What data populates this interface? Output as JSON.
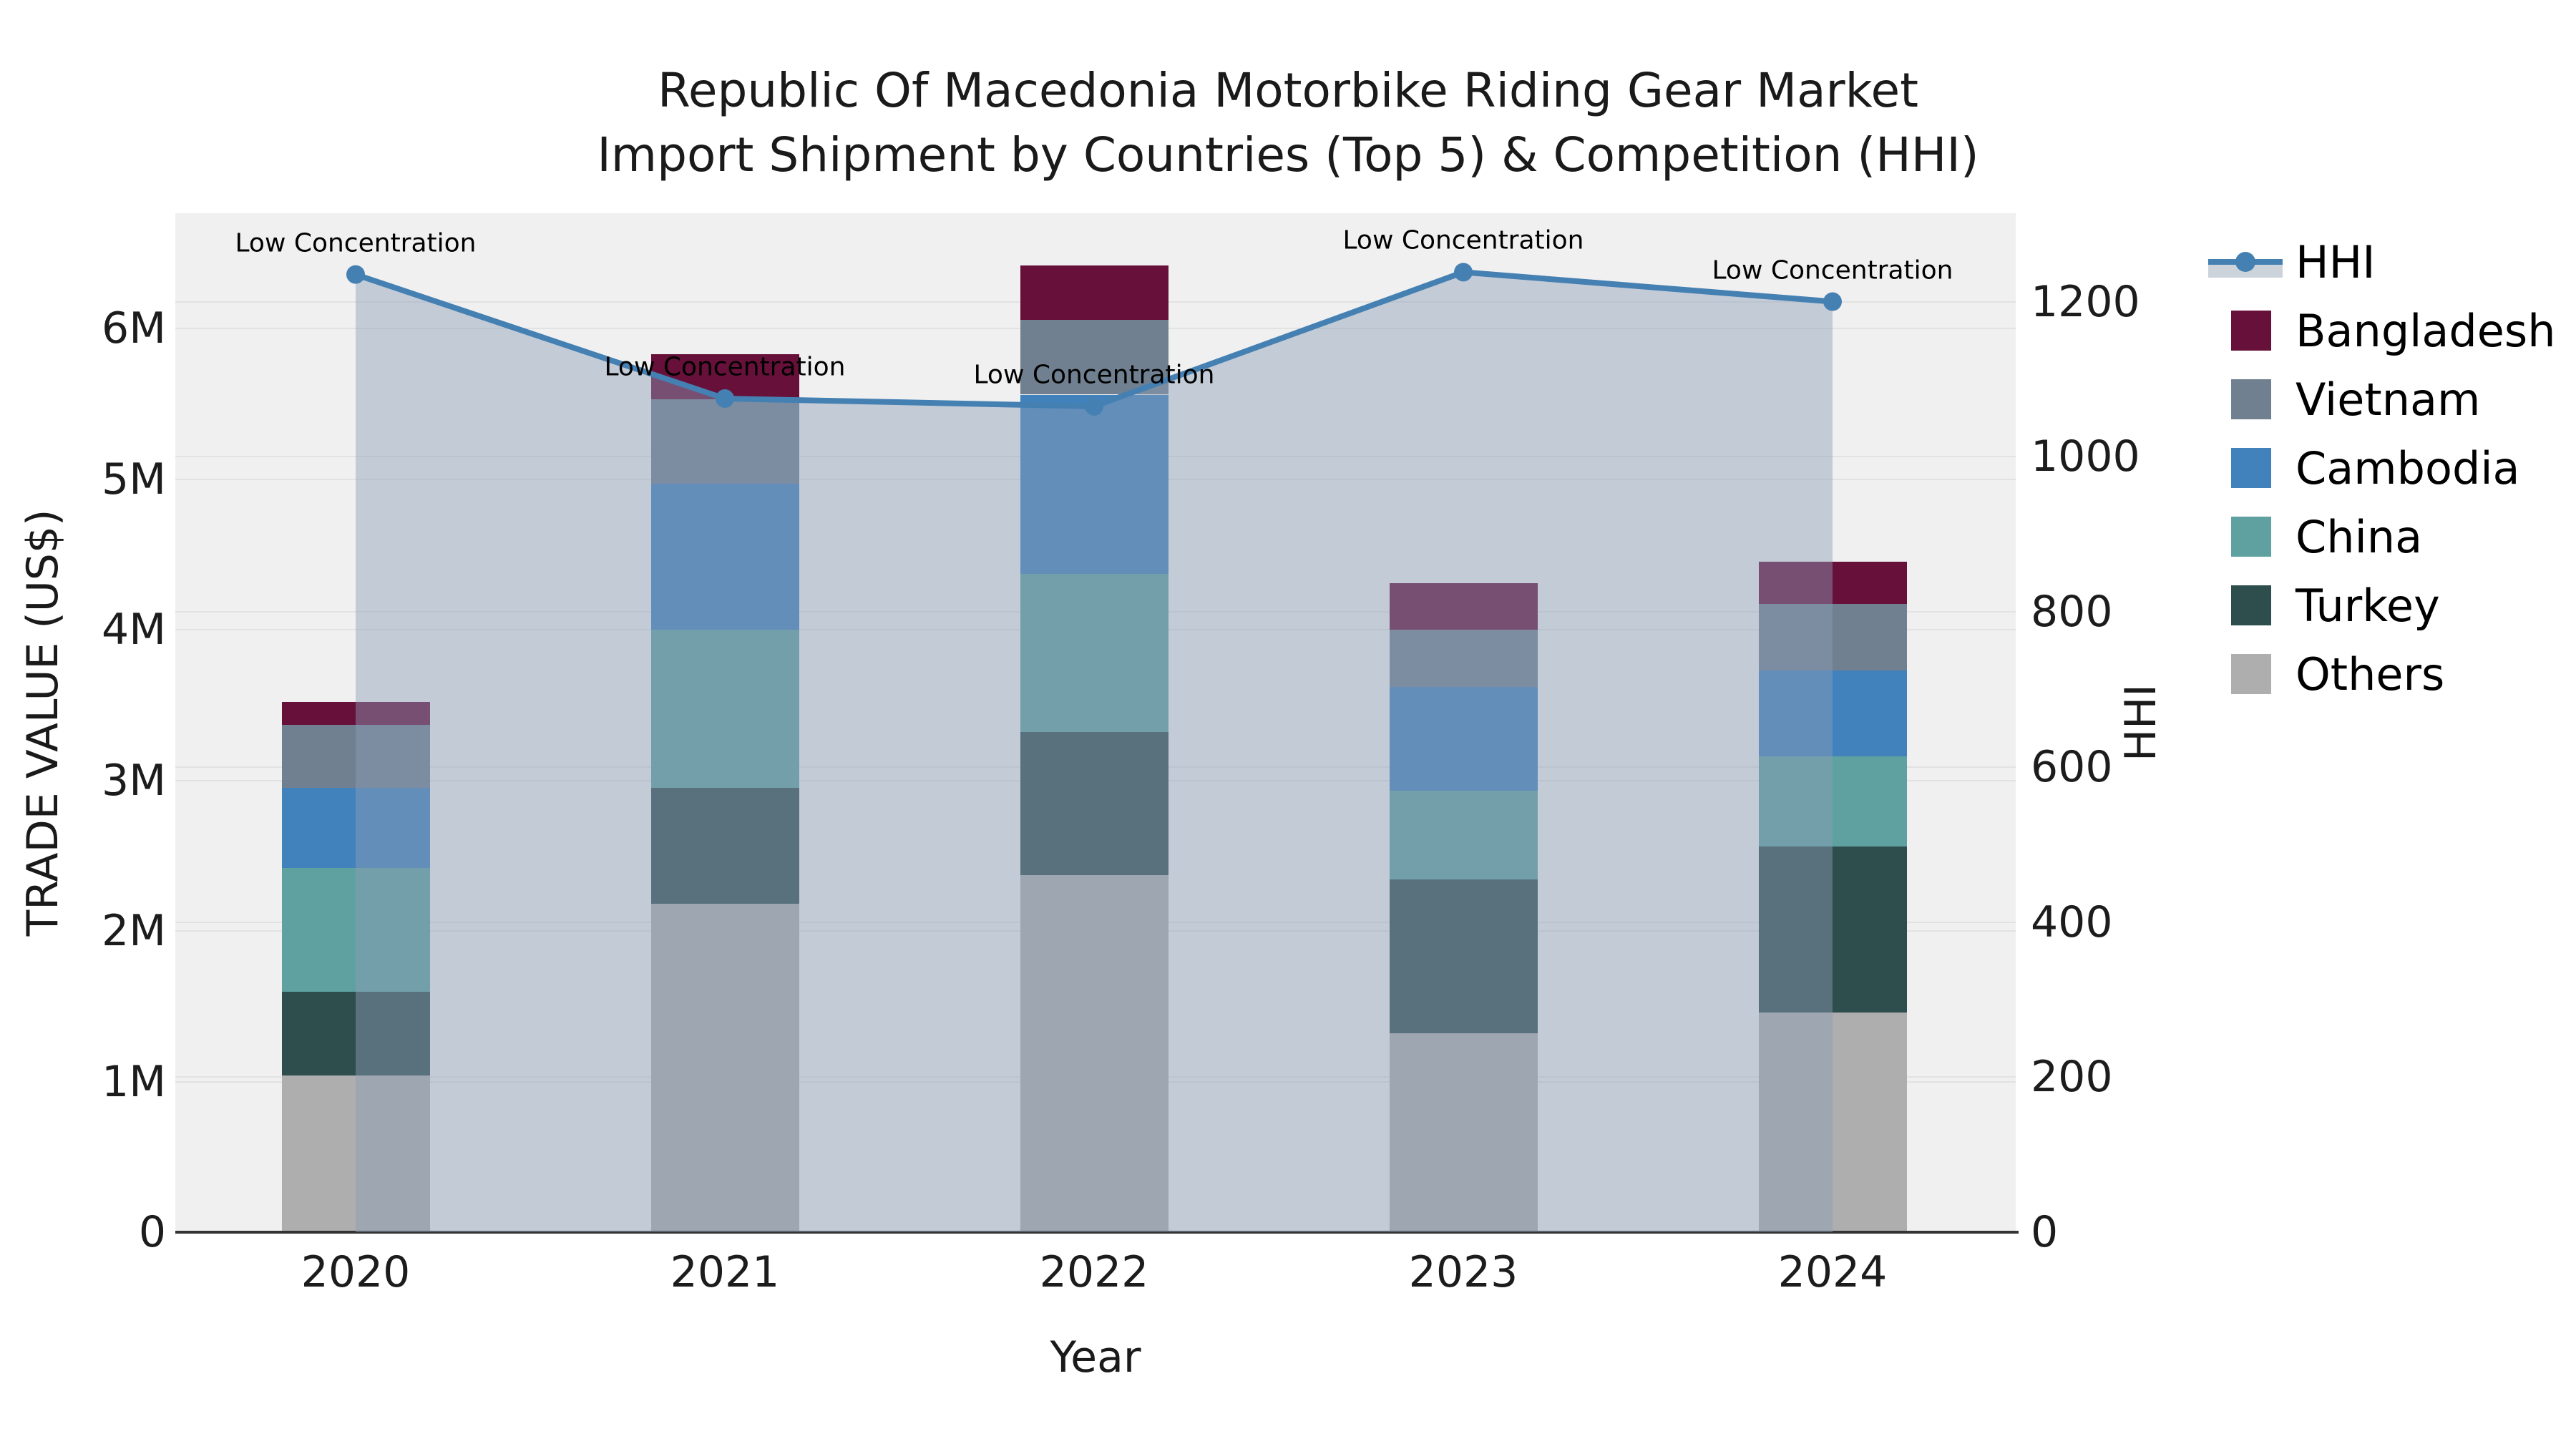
{
  "title": {
    "line1": "Republic Of Macedonia Motorbike Riding Gear Market",
    "line2": "Import Shipment by Countries (Top 5) & Competition (HHI)"
  },
  "axes": {
    "x": {
      "label": "Year",
      "ticks": [
        "2020",
        "2021",
        "2022",
        "2023",
        "2024"
      ]
    },
    "y_left": {
      "label": "TRADE VALUE (US$)",
      "tick_labels": [
        "0",
        "1M",
        "2M",
        "3M",
        "4M",
        "5M",
        "6M"
      ],
      "tick_values": [
        0,
        1,
        2,
        3,
        4,
        5,
        6
      ],
      "range": [
        0,
        6.765
      ]
    },
    "y_right": {
      "label": "HHI",
      "tick_labels": [
        "0",
        "200",
        "400",
        "600",
        "800",
        "1000",
        "1200"
      ],
      "tick_values": [
        0,
        200,
        400,
        600,
        800,
        1000,
        1200
      ],
      "range": [
        0,
        1314
      ]
    }
  },
  "legend": {
    "items": [
      {
        "label": "HHI",
        "type": "line",
        "color": "#4580b2",
        "fill": "#ccd3da"
      },
      {
        "label": "Bangladesh",
        "type": "swatch",
        "color": "#66103a"
      },
      {
        "label": "Vietnam",
        "type": "swatch",
        "color": "#708090"
      },
      {
        "label": "Cambodia",
        "type": "swatch",
        "color": "#4282bc"
      },
      {
        "label": "China",
        "type": "swatch",
        "color": "#5fa1a1"
      },
      {
        "label": "Turkey",
        "type": "swatch",
        "color": "#2e4d4d"
      },
      {
        "label": "Others",
        "type": "swatch",
        "color": "#aeaeae"
      }
    ]
  },
  "chart_data": {
    "type": "bar",
    "stacked": true,
    "categories": [
      "2020",
      "2021",
      "2022",
      "2023",
      "2024"
    ],
    "bar_unit": "million US$",
    "series": [
      {
        "name": "Others",
        "color": "#aeaeae",
        "values": [
          1.04,
          2.18,
          2.37,
          1.32,
          1.46
        ]
      },
      {
        "name": "Turkey",
        "color": "#2e4d4d",
        "values": [
          0.56,
          0.77,
          0.95,
          1.02,
          1.1
        ]
      },
      {
        "name": "China",
        "color": "#5fa1a1",
        "values": [
          0.82,
          1.05,
          1.05,
          0.59,
          0.6
        ]
      },
      {
        "name": "Cambodia",
        "color": "#4282bc",
        "values": [
          0.53,
          0.97,
          1.19,
          0.69,
          0.57
        ]
      },
      {
        "name": "Vietnam",
        "color": "#708090",
        "values": [
          0.42,
          0.56,
          0.5,
          0.38,
          0.44
        ]
      },
      {
        "name": "Bangladesh",
        "color": "#66103a",
        "values": [
          0.15,
          0.3,
          0.36,
          0.31,
          0.28
        ]
      }
    ],
    "bar_totals": [
      3.52,
      5.83,
      6.42,
      4.31,
      4.45
    ],
    "line_series": {
      "name": "HHI",
      "axis": "right",
      "values": [
        1235,
        1075,
        1065,
        1238,
        1200
      ],
      "color": "#4580b2",
      "fill": "rgba(140,158,184,0.45)",
      "point_annotation": "Low Concentration"
    },
    "title": "Republic Of Macedonia Motorbike Riding Gear Market Import Shipment by Countries (Top 5) & Competition (HHI)",
    "xlabel": "Year",
    "ylabel": "TRADE VALUE (US$)",
    "ylabel_right": "HHI",
    "ylim_left": [
      0,
      6.765
    ],
    "ylim_right": [
      0,
      1314
    ],
    "grid": true,
    "legend_position": "right"
  },
  "colors": {
    "background": "#ffffff",
    "plot_background": "#f0f0f0",
    "gridline": "#e2e2e2",
    "axis_line": "#333333",
    "text": "#1a1a1a"
  }
}
